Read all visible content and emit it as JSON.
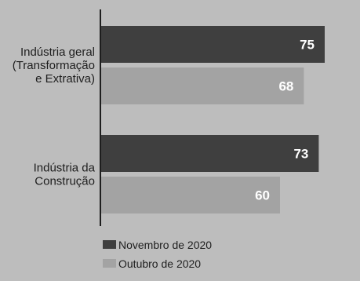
{
  "chart_data": {
    "type": "bar",
    "orientation": "horizontal",
    "categories": [
      [
        "Indústria geral",
        "(Transformação",
        "e Extrativa)"
      ],
      [
        "Indústria da",
        "Construção"
      ]
    ],
    "series": [
      {
        "name": "Novembro de 2020",
        "values": [
          75,
          73
        ]
      },
      {
        "name": "Outubro de 2020",
        "values": [
          68,
          60
        ]
      }
    ],
    "xlim": [
      0,
      85
    ],
    "grid": false,
    "legend_position": "bottom-center"
  },
  "colors": {
    "background": "#bdbdbd",
    "series": [
      "#3f3f3f",
      "#a3a3a3"
    ],
    "axis": "#1e1e1e"
  }
}
